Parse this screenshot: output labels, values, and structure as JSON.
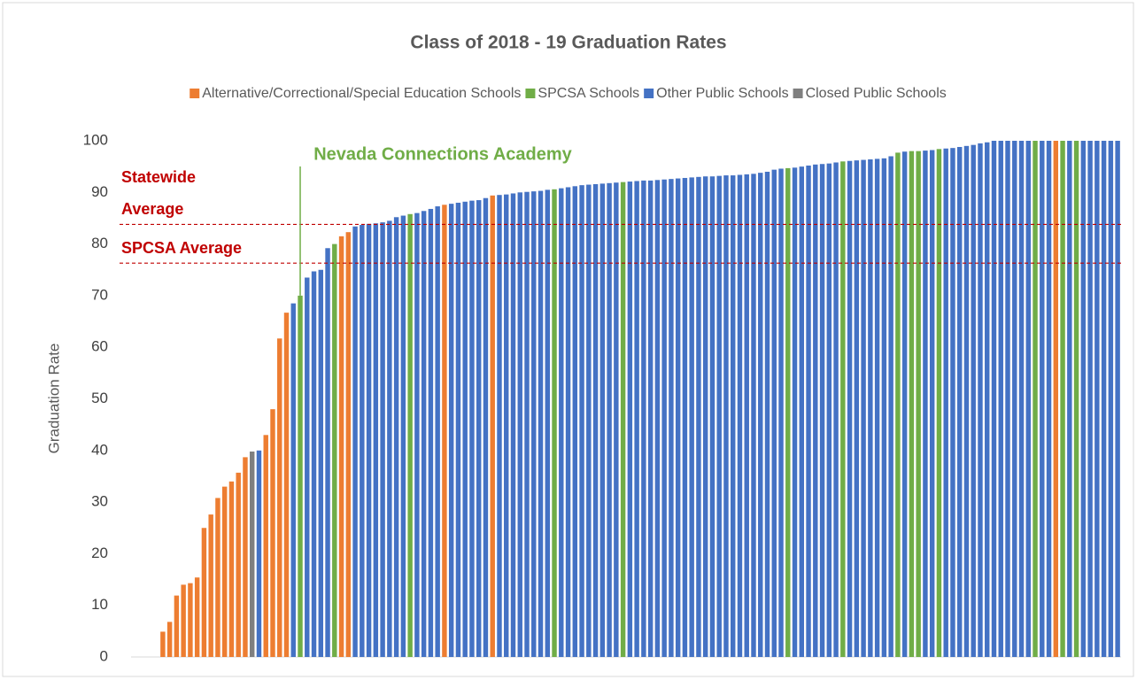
{
  "chart_data": {
    "type": "bar",
    "title": "Class of 2018 - 19 Graduation Rates",
    "y_label": "Graduation Rate",
    "series": [
      {
        "name": "Alternative/Correctional/Special Education Schools",
        "color": "#ed7d31"
      },
      {
        "name": "SPCSA Schools",
        "color": "#70ad47"
      },
      {
        "name": "Other Public Schools",
        "color": "#4472c4"
      },
      {
        "name": "Closed Public Schools",
        "color": "#7f7f7f"
      }
    ],
    "values": [
      4.9,
      6.8,
      11.9,
      14,
      14.3,
      15.4,
      25,
      27.6,
      30.8,
      33,
      34,
      35.7,
      38.7,
      39.8,
      40,
      43,
      48,
      61.7,
      66.7,
      68.5,
      70,
      73.5,
      74.7,
      75,
      79.2,
      80,
      81.5,
      82.3,
      83.4,
      83.7,
      83.9,
      84,
      84.2,
      84.5,
      85.2,
      85.5,
      85.8,
      86,
      86.4,
      86.8,
      87.3,
      87.6,
      87.8,
      88,
      88.2,
      88.4,
      88.5,
      88.9,
      89.4,
      89.5,
      89.6,
      89.8,
      90,
      90.1,
      90.2,
      90.3,
      90.5,
      90.6,
      90.8,
      91,
      91.2,
      91.4,
      91.5,
      91.6,
      91.7,
      91.8,
      91.9,
      92,
      92.1,
      92.2,
      92.3,
      92.3,
      92.4,
      92.5,
      92.6,
      92.7,
      92.8,
      92.9,
      93,
      93.1,
      93.1,
      93.2,
      93.3,
      93.3,
      93.4,
      93.5,
      93.6,
      93.8,
      94,
      94.4,
      94.6,
      94.7,
      94.8,
      95,
      95.2,
      95.4,
      95.5,
      95.6,
      95.8,
      96,
      96.1,
      96.2,
      96.3,
      96.4,
      96.5,
      96.6,
      97,
      97.7,
      97.9,
      98,
      98,
      98.1,
      98.2,
      98.4,
      98.5,
      98.6,
      98.8,
      99,
      99.2,
      99.5,
      99.7,
      100,
      100,
      100,
      100,
      100,
      100,
      100,
      100,
      100,
      100,
      100,
      100,
      100,
      100,
      100,
      100,
      100,
      100,
      100
    ],
    "series_index": [
      0,
      0,
      0,
      0,
      0,
      0,
      0,
      0,
      0,
      0,
      0,
      0,
      0,
      3,
      2,
      0,
      0,
      0,
      0,
      2,
      1,
      2,
      2,
      2,
      2,
      1,
      0,
      0,
      2,
      2,
      2,
      2,
      2,
      2,
      2,
      2,
      1,
      2,
      2,
      2,
      2,
      0,
      2,
      2,
      2,
      2,
      2,
      2,
      0,
      2,
      2,
      2,
      2,
      2,
      2,
      2,
      2,
      1,
      2,
      2,
      2,
      2,
      2,
      2,
      2,
      2,
      2,
      1,
      2,
      2,
      2,
      2,
      2,
      2,
      2,
      2,
      2,
      2,
      2,
      2,
      2,
      2,
      2,
      2,
      2,
      2,
      2,
      2,
      2,
      2,
      2,
      1,
      2,
      2,
      2,
      2,
      2,
      2,
      2,
      1,
      2,
      2,
      2,
      2,
      2,
      2,
      2,
      1,
      2,
      1,
      1,
      2,
      2,
      1,
      2,
      2,
      2,
      2,
      2,
      2,
      2,
      2,
      2,
      2,
      2,
      2,
      2,
      1,
      2,
      2,
      0,
      1,
      2,
      1,
      2,
      2,
      2,
      2,
      2,
      2
    ],
    "ylim": [
      0,
      100
    ],
    "yticks": [
      0,
      10,
      20,
      30,
      40,
      50,
      60,
      70,
      80,
      90,
      100
    ],
    "grid": false,
    "reference_lines": [
      {
        "label_lines": [
          "Statewide",
          "Average"
        ],
        "value": 83.8,
        "color": "#c00000"
      },
      {
        "label_lines": [
          "SPCSA Average"
        ],
        "value": 76.3,
        "color": "#c00000"
      }
    ],
    "annotation": {
      "text": "Nevada Connections Academy",
      "index": 20,
      "color": "#70ad47"
    }
  }
}
